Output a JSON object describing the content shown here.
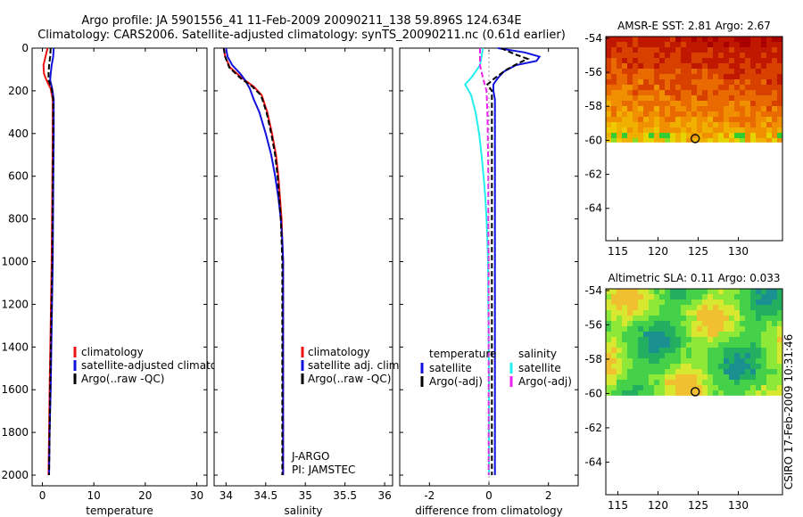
{
  "header": {
    "line1": "Argo profile: JA 5901556_41 11-Feb-2009 20090211_138 59.896S 124.634E",
    "line2": "Climatology: CARS2006. Satellite-adjusted climatology: synTS_20090211.nc (0.61d earlier)"
  },
  "watermark": "CSIRO 17-Feb-2009 10:31:46",
  "colors": {
    "red": "#ee1111",
    "blue": "#1111dd",
    "black": "#000000",
    "cyan": "#22eeee",
    "magenta": "#ee22ee"
  },
  "chart_data": [
    {
      "type": "line",
      "id": "temperature",
      "xlabel": "temperature",
      "xlim": [
        -2,
        32
      ],
      "ylim": [
        2050,
        0
      ],
      "y_reversed": true,
      "xticks": [
        0,
        10,
        20,
        30
      ],
      "yticks": [
        0,
        200,
        400,
        600,
        800,
        1000,
        1200,
        1400,
        1600,
        1800,
        2000
      ],
      "legend": [
        "climatology",
        "satellite-adjusted climatology",
        "Argo(..raw -QC)"
      ],
      "series": [
        {
          "name": "climatology",
          "color": "red",
          "dash": false,
          "points": [
            [
              1.0,
              0
            ],
            [
              0.6,
              40
            ],
            [
              0.2,
              80
            ],
            [
              0.3,
              120
            ],
            [
              0.8,
              150
            ],
            [
              1.6,
              190
            ],
            [
              2.0,
              240
            ],
            [
              2.0,
              400
            ],
            [
              1.9,
              700
            ],
            [
              1.8,
              1000
            ],
            [
              1.6,
              1300
            ],
            [
              1.4,
              1600
            ],
            [
              1.3,
              1800
            ],
            [
              1.2,
              2000
            ]
          ]
        },
        {
          "name": "satellite-adjusted climatology",
          "color": "blue",
          "dash": false,
          "points": [
            [
              2.2,
              0
            ],
            [
              2.1,
              40
            ],
            [
              1.8,
              80
            ],
            [
              1.6,
              120
            ],
            [
              1.5,
              150
            ],
            [
              1.9,
              190
            ],
            [
              2.2,
              240
            ],
            [
              2.2,
              400
            ],
            [
              2.1,
              700
            ],
            [
              2.0,
              1000
            ],
            [
              1.8,
              1300
            ],
            [
              1.6,
              1600
            ],
            [
              1.4,
              1800
            ],
            [
              1.3,
              2000
            ]
          ]
        },
        {
          "name": "Argo(..raw -QC)",
          "color": "black",
          "dash": true,
          "points": [
            [
              1.6,
              0
            ],
            [
              1.5,
              40
            ],
            [
              1.3,
              80
            ],
            [
              1.2,
              120
            ],
            [
              1.2,
              150
            ],
            [
              1.8,
              190
            ],
            [
              2.1,
              240
            ],
            [
              2.1,
              400
            ],
            [
              2.0,
              700
            ],
            [
              1.9,
              1000
            ],
            [
              1.7,
              1300
            ],
            [
              1.5,
              1600
            ],
            [
              1.4,
              1800
            ],
            [
              1.3,
              2000
            ]
          ]
        }
      ]
    },
    {
      "type": "line",
      "id": "salinity",
      "xlabel": "salinity",
      "xlim": [
        33.85,
        36.1
      ],
      "ylim": [
        2050,
        0
      ],
      "y_reversed": true,
      "xticks": [
        34,
        34.5,
        35,
        35.5,
        36
      ],
      "yticks": [
        0,
        200,
        400,
        600,
        800,
        1000,
        1200,
        1400,
        1600,
        1800,
        2000
      ],
      "legend": [
        "climatology",
        "satellite adj. clim.",
        "Argo(..raw -QC)"
      ],
      "annotations": [
        "J-ARGO",
        "PI: JAMSTEC"
      ],
      "series": [
        {
          "name": "climatology",
          "color": "red",
          "dash": false,
          "points": [
            [
              33.97,
              0
            ],
            [
              33.99,
              40
            ],
            [
              34.05,
              90
            ],
            [
              34.2,
              140
            ],
            [
              34.35,
              180
            ],
            [
              34.45,
              220
            ],
            [
              34.52,
              300
            ],
            [
              34.58,
              400
            ],
            [
              34.63,
              500
            ],
            [
              34.66,
              600
            ],
            [
              34.68,
              700
            ],
            [
              34.7,
              800
            ],
            [
              34.71,
              900
            ],
            [
              34.72,
              1000
            ],
            [
              34.72,
              1200
            ],
            [
              34.72,
              1500
            ],
            [
              34.72,
              1800
            ],
            [
              34.72,
              2000
            ]
          ]
        },
        {
          "name": "satellite adj. clim.",
          "color": "blue",
          "dash": false,
          "points": [
            [
              34.0,
              0
            ],
            [
              34.02,
              40
            ],
            [
              34.08,
              80
            ],
            [
              34.18,
              120
            ],
            [
              34.24,
              150
            ],
            [
              34.3,
              190
            ],
            [
              34.35,
              240
            ],
            [
              34.42,
              300
            ],
            [
              34.5,
              400
            ],
            [
              34.57,
              500
            ],
            [
              34.62,
              600
            ],
            [
              34.66,
              700
            ],
            [
              34.69,
              800
            ],
            [
              34.71,
              900
            ],
            [
              34.72,
              1000
            ],
            [
              34.72,
              1200
            ],
            [
              34.72,
              1500
            ],
            [
              34.72,
              1800
            ],
            [
              34.72,
              2000
            ]
          ]
        },
        {
          "name": "Argo(..raw -QC)",
          "color": "black",
          "dash": true,
          "points": [
            [
              33.97,
              0
            ],
            [
              33.99,
              40
            ],
            [
              34.04,
              90
            ],
            [
              34.18,
              140
            ],
            [
              34.33,
              180
            ],
            [
              34.44,
              220
            ],
            [
              34.51,
              300
            ],
            [
              34.57,
              400
            ],
            [
              34.62,
              500
            ],
            [
              34.65,
              600
            ],
            [
              34.67,
              700
            ],
            [
              34.69,
              800
            ],
            [
              34.7,
              900
            ],
            [
              34.71,
              1000
            ],
            [
              34.71,
              1200
            ],
            [
              34.71,
              1500
            ],
            [
              34.71,
              1800
            ],
            [
              34.71,
              2000
            ]
          ]
        }
      ]
    },
    {
      "type": "line",
      "id": "difference",
      "xlabel": "difference from climatology",
      "xlim": [
        -3,
        3
      ],
      "ylim": [
        2050,
        0
      ],
      "y_reversed": true,
      "xticks": [
        -2,
        0,
        2
      ],
      "yticks": [
        0,
        200,
        400,
        600,
        800,
        1000,
        1200,
        1400,
        1600,
        1800,
        2000
      ],
      "legend_groups": [
        {
          "header": "temperature",
          "items": [
            "satellite",
            "Argo(-adj)"
          ]
        },
        {
          "header": "salinity",
          "items": [
            "satellite",
            "Argo(-adj)"
          ]
        }
      ],
      "series": [
        {
          "name": "temperature satellite",
          "color": "blue",
          "dash": false,
          "points": [
            [
              0.3,
              0
            ],
            [
              1.2,
              20
            ],
            [
              1.7,
              40
            ],
            [
              1.6,
              60
            ],
            [
              0.9,
              80
            ],
            [
              0.5,
              110
            ],
            [
              0.3,
              140
            ],
            [
              0.15,
              170
            ],
            [
              0.15,
              200
            ],
            [
              0.2,
              240
            ],
            [
              0.2,
              400
            ],
            [
              0.2,
              600
            ],
            [
              0.2,
              800
            ],
            [
              0.2,
              1000
            ],
            [
              0.2,
              1200
            ],
            [
              0.2,
              1400
            ],
            [
              0.2,
              1600
            ],
            [
              0.2,
              1800
            ],
            [
              0.2,
              2000
            ]
          ]
        },
        {
          "name": "temperature Argo(-adj)",
          "color": "black",
          "dash": true,
          "points": [
            [
              0.4,
              0
            ],
            [
              0.9,
              30
            ],
            [
              1.3,
              50
            ],
            [
              1.0,
              70
            ],
            [
              0.6,
              100
            ],
            [
              0.2,
              140
            ],
            [
              -0.05,
              170
            ],
            [
              0.1,
              200
            ],
            [
              0.1,
              400
            ],
            [
              0.1,
              600
            ],
            [
              0.1,
              800
            ],
            [
              0.1,
              1000
            ],
            [
              0.1,
              1200
            ],
            [
              0.1,
              1600
            ],
            [
              0.1,
              2000
            ]
          ]
        },
        {
          "name": "salinity satellite",
          "color": "cyan",
          "dash": false,
          "points": [
            [
              -0.2,
              0
            ],
            [
              -0.3,
              80
            ],
            [
              -0.6,
              140
            ],
            [
              -0.8,
              170
            ],
            [
              -0.6,
              220
            ],
            [
              -0.45,
              300
            ],
            [
              -0.33,
              400
            ],
            [
              -0.25,
              500
            ],
            [
              -0.18,
              600
            ],
            [
              -0.12,
              700
            ],
            [
              -0.08,
              800
            ],
            [
              -0.05,
              900
            ],
            [
              -0.03,
              1000
            ],
            [
              -0.02,
              1200
            ],
            [
              0,
              1500
            ],
            [
              0,
              2000
            ]
          ]
        },
        {
          "name": "salinity Argo(-adj)",
          "color": "magenta",
          "dash": true,
          "points": [
            [
              -0.3,
              0
            ],
            [
              -0.3,
              80
            ],
            [
              -0.2,
              140
            ],
            [
              -0.08,
              200
            ],
            [
              -0.05,
              300
            ],
            [
              -0.04,
              400
            ],
            [
              -0.02,
              600
            ],
            [
              -0.02,
              800
            ],
            [
              -0.01,
              1000
            ],
            [
              -0.01,
              1200
            ],
            [
              -0.01,
              1500
            ],
            [
              -0.01,
              2000
            ]
          ]
        }
      ]
    },
    {
      "type": "heatmap",
      "id": "sst",
      "title": "AMSR-E SST: 2.81  Argo: 2.67",
      "xlim": [
        113.5,
        135.5
      ],
      "ylim": [
        -65.9,
        -53.9
      ],
      "xticks": [
        115,
        120,
        125,
        130
      ],
      "yticks": [
        -54,
        -56,
        -58,
        -60,
        -62,
        -64
      ],
      "data_bottom_lat": -60.1,
      "marker": {
        "lon": 124.634,
        "lat": -59.896
      }
    },
    {
      "type": "heatmap",
      "id": "sla",
      "title": "Altimetric SLA: 0.11  Argo: 0.033",
      "xlim": [
        113.5,
        135.5
      ],
      "ylim": [
        -65.9,
        -53.9
      ],
      "xticks": [
        115,
        120,
        125,
        130
      ],
      "yticks": [
        -54,
        -56,
        -58,
        -60,
        -62,
        -64
      ],
      "data_bottom_lat": -60.1,
      "marker": {
        "lon": 124.634,
        "lat": -59.896
      }
    }
  ]
}
